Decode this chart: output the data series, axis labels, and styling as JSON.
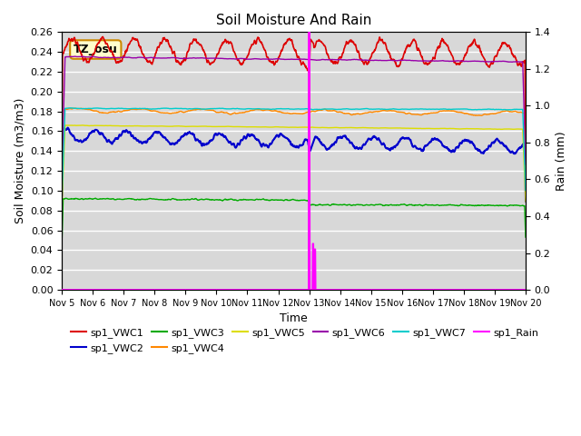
{
  "title": "Soil Moisture And Rain",
  "xlabel": "Time",
  "ylabel_left": "Soil Moisture (m3/m3)",
  "ylabel_right": "Rain (mm)",
  "ylim_left": [
    0.0,
    0.26
  ],
  "ylim_right": [
    0.0,
    1.4
  ],
  "bg_color": "#d8d8d8",
  "annotation_box": "TZ_osu",
  "xtick_labels": [
    "Nov 5",
    "Nov 6",
    "Nov 7",
    "Nov 8",
    "Nov 9",
    "Nov 10",
    "Nov 11",
    "Nov 12",
    "Nov 13",
    "Nov 14",
    "Nov 15",
    "Nov 16",
    "Nov 17",
    "Nov 18",
    "Nov 19",
    "Nov 20"
  ],
  "series_colors": {
    "VWC1": "#dd0000",
    "VWC2": "#0000cc",
    "VWC3": "#00aa00",
    "VWC4": "#ff8800",
    "VWC5": "#dddd00",
    "VWC6": "#9900aa",
    "VWC7": "#00cccc",
    "Rain": "#ff00ff"
  },
  "legend_row1": [
    "sp1_VWC1",
    "sp1_VWC2",
    "sp1_VWC3",
    "sp1_VWC4",
    "sp1_VWC5",
    "sp1_VWC6"
  ],
  "legend_row1_colors": [
    "#dd0000",
    "#0000cc",
    "#00aa00",
    "#ff8800",
    "#dddd00",
    "#9900aa"
  ],
  "legend_row2": [
    "sp1_VWC7",
    "sp1_Rain"
  ],
  "legend_row2_colors": [
    "#00cccc",
    "#ff00ff"
  ]
}
